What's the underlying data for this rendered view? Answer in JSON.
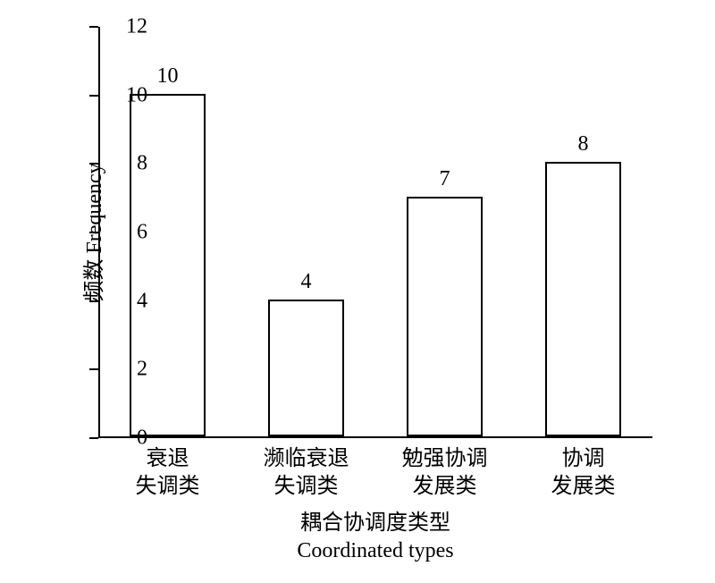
{
  "chart": {
    "type": "bar",
    "background_color": "#ffffff",
    "axis_color": "#000000",
    "bar_border_color": "#000000",
    "bar_fill_color": "#ffffff",
    "bar_border_width": 2,
    "axis_line_width": 2,
    "ylim": [
      0,
      12
    ],
    "ytick_step": 2,
    "yticks": [
      {
        "value": 0,
        "label": "0"
      },
      {
        "value": 2,
        "label": "2"
      },
      {
        "value": 4,
        "label": "4"
      },
      {
        "value": 6,
        "label": "6"
      },
      {
        "value": 8,
        "label": "8"
      },
      {
        "value": 10,
        "label": "10"
      },
      {
        "value": 12,
        "label": "12"
      }
    ],
    "y_axis_title": "频数 Frequency",
    "x_axis_title_line1": "耦合协调度类型",
    "x_axis_title_line2": "Coordinated types",
    "title_fontsize": 24,
    "tick_fontsize": 24,
    "label_fontsize": 24,
    "bar_width_ratio": 0.55,
    "categories": [
      {
        "label_line1": "衰退",
        "label_line2": "失调类",
        "value": 10,
        "value_label": "10"
      },
      {
        "label_line1": "濒临衰退",
        "label_line2": "失调类",
        "value": 4,
        "value_label": "4"
      },
      {
        "label_line1": "勉强协调",
        "label_line2": "发展类",
        "value": 7,
        "value_label": "7"
      },
      {
        "label_line1": "协调",
        "label_line2": "发展类",
        "value": 8,
        "value_label": "8"
      }
    ]
  }
}
